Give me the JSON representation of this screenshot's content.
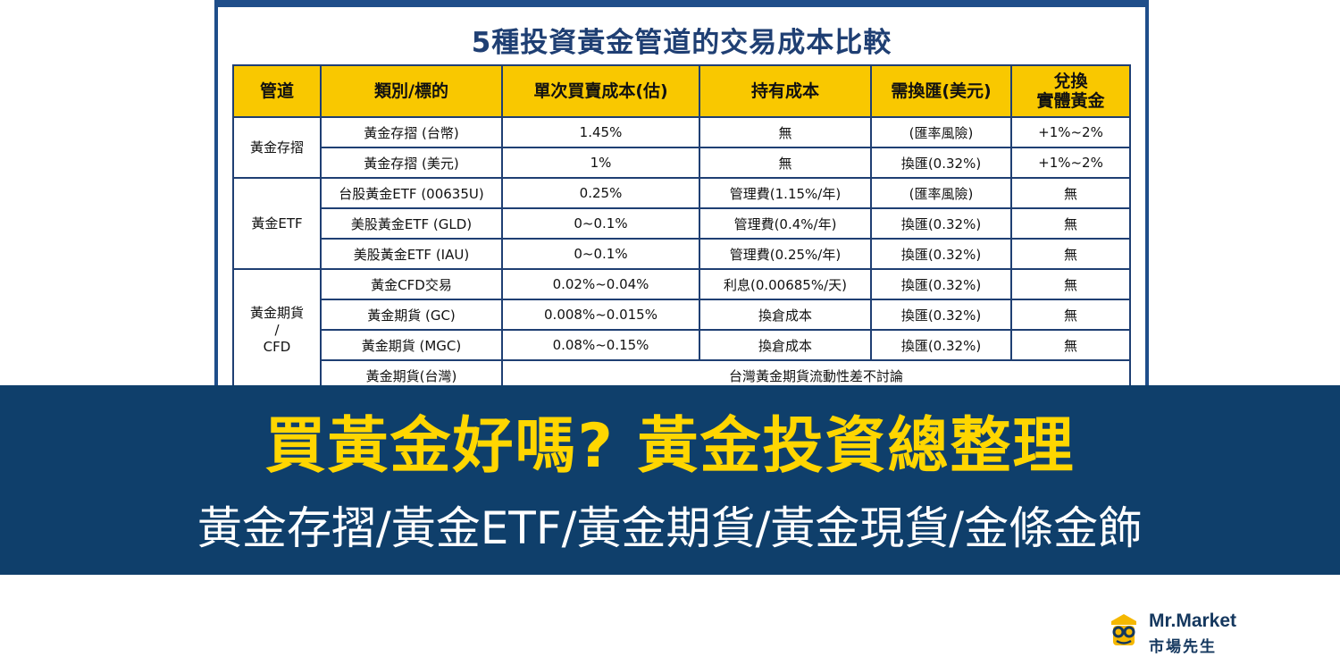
{
  "table": {
    "title": "5種投資黃金管道的交易成本比較",
    "headers": [
      "管道",
      "類別/標的",
      "單次買賣成本(估)",
      "持有成本",
      "需換匯(美元)",
      "兌換",
      "實體黃金"
    ],
    "groups": {
      "g1": "黃金存摺",
      "g2": "黃金ETF",
      "g3_line1": "黃金期貨",
      "g3_line2": "/",
      "g3_line3": "CFD"
    },
    "rows": [
      [
        "黃金存摺 (台幣)",
        "1.45%",
        "無",
        "(匯率風險)",
        "+1%~2%"
      ],
      [
        "黃金存摺 (美元)",
        "1%",
        "無",
        "換匯(0.32%)",
        "+1%~2%"
      ],
      [
        "台股黃金ETF (00635U)",
        "0.25%",
        "管理費(1.15%/年)",
        "(匯率風險)",
        "無"
      ],
      [
        "美股黃金ETF (GLD)",
        "0~0.1%",
        "管理費(0.4%/年)",
        "換匯(0.32%)",
        "無"
      ],
      [
        "美股黃金ETF (IAU)",
        "0~0.1%",
        "管理費(0.25%/年)",
        "換匯(0.32%)",
        "無"
      ],
      [
        "黃金CFD交易",
        "0.02%~0.04%",
        "利息(0.00685%/天)",
        "換匯(0.32%)",
        "無"
      ],
      [
        "黃金期貨 (GC)",
        "0.008%~0.015%",
        "換倉成本",
        "換匯(0.32%)",
        "無"
      ],
      [
        "黃金期貨 (MGC)",
        "0.08%~0.15%",
        "換倉成本",
        "換匯(0.32%)",
        "無"
      ]
    ],
    "last_row": {
      "label": "黃金期貨(台灣)",
      "note": "台灣黃金期貨流動性差不討論"
    }
  },
  "banner": {
    "title": "買黃金好嗎? 黃金投資總整理",
    "subtitle": "黃金存摺/黃金ETF/黃金期貨/黃金現貨/金條金飾"
  },
  "logo": {
    "name_en": "Mr.Market",
    "name_zh": "市場先生",
    "icon": "mr-market-mascot-icon"
  },
  "colors": {
    "navy": "#0f3f6b",
    "gold": "#f9c800",
    "title_yellow": "#ffd600"
  }
}
